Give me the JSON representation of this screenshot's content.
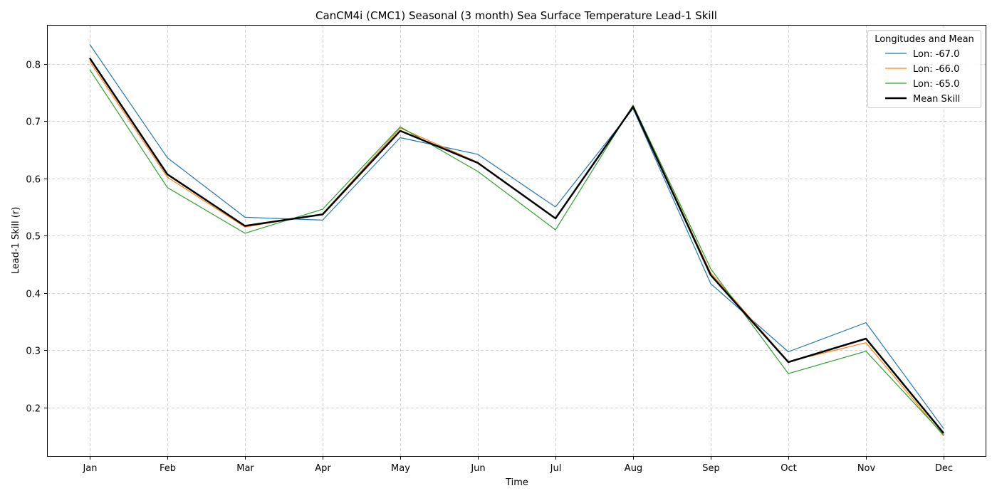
{
  "chart_data": {
    "type": "line",
    "title": "CanCM4i (CMC1) Seasonal (3 month) Sea Surface Temperature Lead-1 Skill",
    "xlabel": "Time",
    "ylabel": "Lead-1 Skill (r)",
    "categories": [
      "Jan",
      "Feb",
      "Mar",
      "Apr",
      "May",
      "Jun",
      "Jul",
      "Aug",
      "Sep",
      "Oct",
      "Nov",
      "Dec"
    ],
    "ylim": [
      0.115,
      0.868
    ],
    "yticks": [
      0.2,
      0.3,
      0.4,
      0.5,
      0.6,
      0.7,
      0.8
    ],
    "grid": true,
    "legend": {
      "title": "Longitudes and Mean",
      "placement": "top-right"
    },
    "series": [
      {
        "name": "Lon: -67.0",
        "color": "#1f77b4",
        "values": [
          0.834,
          0.636,
          0.532,
          0.527,
          0.671,
          0.642,
          0.55,
          0.722,
          0.416,
          0.297,
          0.348,
          0.163
        ]
      },
      {
        "name": "Lon: -66.0",
        "color": "#ff7f0e",
        "values": [
          0.804,
          0.602,
          0.515,
          0.538,
          0.688,
          0.628,
          0.53,
          0.726,
          0.435,
          0.28,
          0.313,
          0.15
        ]
      },
      {
        "name": "Lon: -65.0",
        "color": "#2ca02c",
        "values": [
          0.79,
          0.584,
          0.504,
          0.546,
          0.69,
          0.612,
          0.51,
          0.728,
          0.442,
          0.259,
          0.298,
          0.152
        ]
      },
      {
        "name": "Mean Skill",
        "color": "#000000",
        "values": [
          0.81,
          0.607,
          0.517,
          0.537,
          0.683,
          0.627,
          0.53,
          0.725,
          0.431,
          0.279,
          0.32,
          0.155
        ],
        "bold": true
      }
    ]
  }
}
